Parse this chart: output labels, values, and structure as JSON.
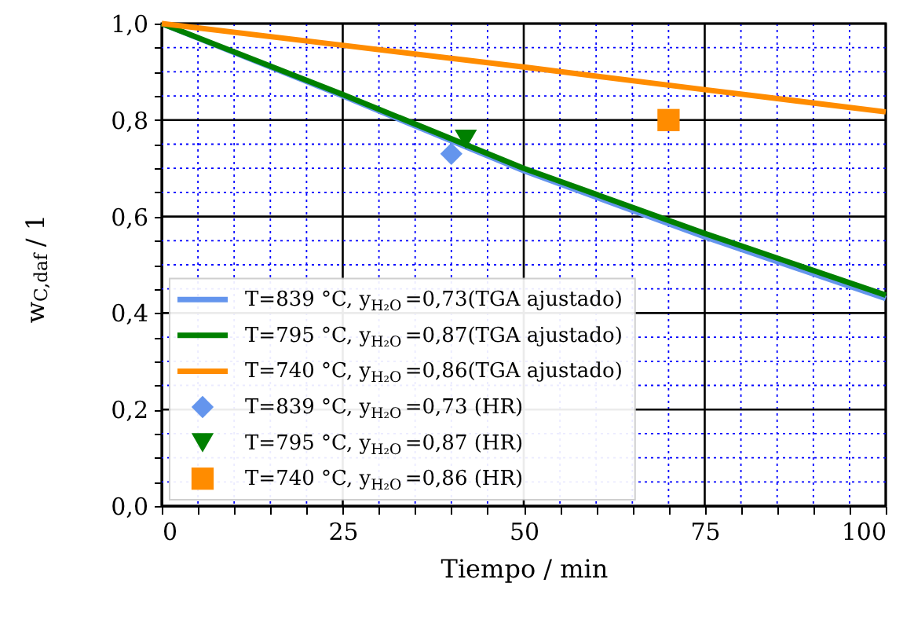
{
  "chart_data": {
    "type": "line",
    "xlabel": "Tiempo / min",
    "ylabel": "w$_{C,daf}$ / 1",
    "xlim": [
      0,
      100
    ],
    "ylim": [
      0,
      1
    ],
    "xticks": [
      0,
      {
        "value": 5,
        "label": null
      },
      {
        "value": 10,
        "label": null
      },
      {
        "value": 15,
        "label": null
      },
      {
        "value": 20,
        "label": null
      },
      25,
      {
        "value": 30,
        "label": null
      },
      {
        "value": 35,
        "label": null
      },
      {
        "value": 40,
        "label": null
      },
      {
        "value": 45,
        "label": null
      },
      50,
      {
        "value": 55,
        "label": null
      },
      {
        "value": 60,
        "label": null
      },
      {
        "value": 65,
        "label": null
      },
      {
        "value": 70,
        "label": null
      },
      75,
      {
        "value": 80,
        "label": null
      },
      {
        "value": 85,
        "label": null
      },
      {
        "value": 90,
        "label": null
      },
      {
        "value": 95,
        "label": null
      },
      100
    ],
    "yticks": [
      {
        "value": 0,
        "label": "0,0"
      },
      {
        "value": 0.05,
        "label": null
      },
      {
        "value": 0.1,
        "label": null
      },
      {
        "value": 0.15,
        "label": null
      },
      {
        "value": 0.2,
        "label": "0,2"
      },
      {
        "value": 0.25,
        "label": null
      },
      {
        "value": 0.3,
        "label": null
      },
      {
        "value": 0.35,
        "label": null
      },
      {
        "value": 0.4,
        "label": "0,4"
      },
      {
        "value": 0.45,
        "label": null
      },
      {
        "value": 0.5,
        "label": null
      },
      {
        "value": 0.55,
        "label": null
      },
      {
        "value": 0.6,
        "label": "0,6"
      },
      {
        "value": 0.65,
        "label": null
      },
      {
        "value": 0.7,
        "label": null
      },
      {
        "value": 0.75,
        "label": null
      },
      {
        "value": 0.8,
        "label": "0,8"
      },
      {
        "value": 0.85,
        "label": null
      },
      {
        "value": 0.9,
        "label": null
      },
      {
        "value": 0.95,
        "label": null
      },
      {
        "value": 1,
        "label": "1,0"
      }
    ],
    "grid": true,
    "legend": "bottom left",
    "series": [
      {
        "name": "T=839 °C, y$_{H₂O}$=0,73(TGA ajustado)",
        "color": "#6495ed",
        "marker": "none",
        "x": [
          0,
          25,
          50,
          75,
          100
        ],
        "values": [
          1.0,
          0.85,
          0.695,
          0.558,
          0.43
        ]
      },
      {
        "name": "T=795 °C, y$_{H₂O}$=0,87(TGA ajustado)",
        "color": "#008000",
        "marker": "none",
        "x": [
          0,
          25,
          50,
          75,
          100
        ],
        "values": [
          1.0,
          0.853,
          0.7,
          0.565,
          0.437
        ]
      },
      {
        "name": "T=740 °C, y$_{H₂O}$=0,86(TGA ajustado)",
        "color": "#ff8c00",
        "marker": "none",
        "x": [
          0,
          25,
          50,
          75,
          100
        ],
        "values": [
          1.0,
          0.955,
          0.91,
          0.863,
          0.817
        ]
      },
      {
        "name": "T=839 °C, y$_{H₂O}$=0,73 (HR)",
        "type": "scatter",
        "color": "#6495ed",
        "marker": "diamond",
        "x": [
          40
        ],
        "values": [
          0.73
        ]
      },
      {
        "name": "T=795 °C, y$_{H₂O}$=0,87 (HR)",
        "type": "scatter",
        "color": "#008000",
        "marker": "triangle",
        "x": [
          42
        ],
        "values": [
          0.76
        ]
      },
      {
        "name": "T=740 °C, y$_{H₂O}$=0,86 (HR)",
        "type": "scatter",
        "color": "#ff8c00",
        "marker": "square",
        "x": [
          70
        ],
        "values": [
          0.8
        ]
      }
    ]
  }
}
